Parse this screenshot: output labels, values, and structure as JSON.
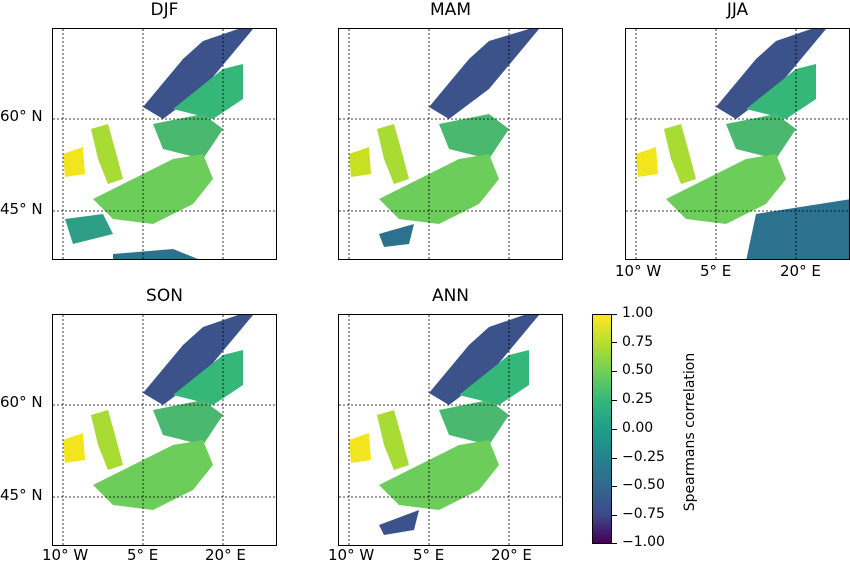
{
  "panels": [
    {
      "title": "DJF"
    },
    {
      "title": "MAM"
    },
    {
      "title": "JJA"
    },
    {
      "title": "SON"
    },
    {
      "title": "ANN"
    }
  ],
  "lat_labels": [
    "60° N",
    "45° N"
  ],
  "lon_labels": [
    "10° W",
    "5° E",
    "20° E"
  ],
  "colorbar": {
    "title": "Spearmans correlation",
    "ticks": [
      "1.00",
      "0.75",
      "0.50",
      "0.25",
      "0.00",
      "−0.25",
      "−0.50",
      "−0.75",
      "−1.00"
    ],
    "colormap": "viridis",
    "range": [
      -1.0,
      1.0
    ]
  },
  "colors": {
    "high": "#fde725",
    "mid_high": "#8fd744",
    "mid": "#35b779",
    "low": "#2a788e",
    "very_low": "#3b528b"
  }
}
